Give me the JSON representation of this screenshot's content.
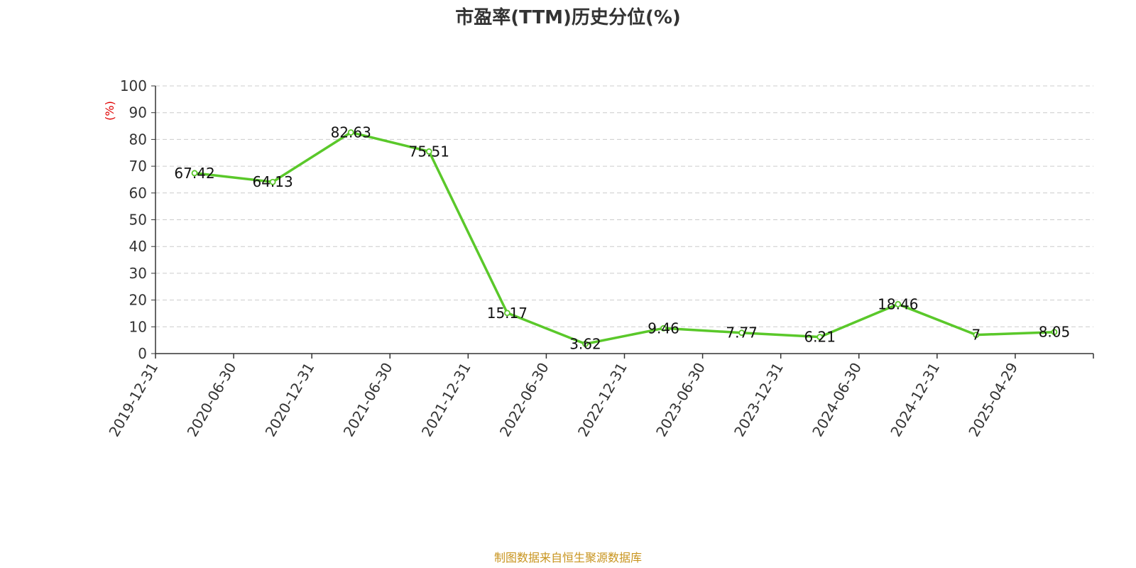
{
  "chart_data": {
    "type": "line",
    "title": "市盈率(TTM)历史分位(%)",
    "ylabel": "(%)",
    "xlabel": "",
    "ylim": [
      0,
      100
    ],
    "yticks": [
      0,
      10,
      20,
      30,
      40,
      50,
      60,
      70,
      80,
      90,
      100
    ],
    "grid": true,
    "categories": [
      "2019-12-31",
      "2020-06-30",
      "2020-12-31",
      "2021-06-30",
      "2021-12-31",
      "2022-06-30",
      "2022-12-31",
      "2023-06-30",
      "2023-12-31",
      "2024-06-30",
      "2024-12-31",
      "2025-04-29"
    ],
    "series": [
      {
        "values": [
          67.42,
          64.13,
          82.63,
          75.51,
          15.17,
          3.62,
          9.46,
          7.77,
          6.21,
          18.46,
          7,
          8.05
        ],
        "labels": [
          "67.42",
          "64.13",
          "82.63",
          "75.51",
          "15.17",
          "3.62",
          "9.46",
          "7.77",
          "6.21",
          "18.46",
          "7",
          "8.05"
        ],
        "color": "#5ac82a"
      }
    ]
  },
  "source_text": "制图数据来自恒生聚源数据库",
  "colors": {
    "line": "#5ac82a",
    "ylabel": "#e00000",
    "source": "#c8941e",
    "grid": "#cccccc",
    "axis": "#333333"
  }
}
